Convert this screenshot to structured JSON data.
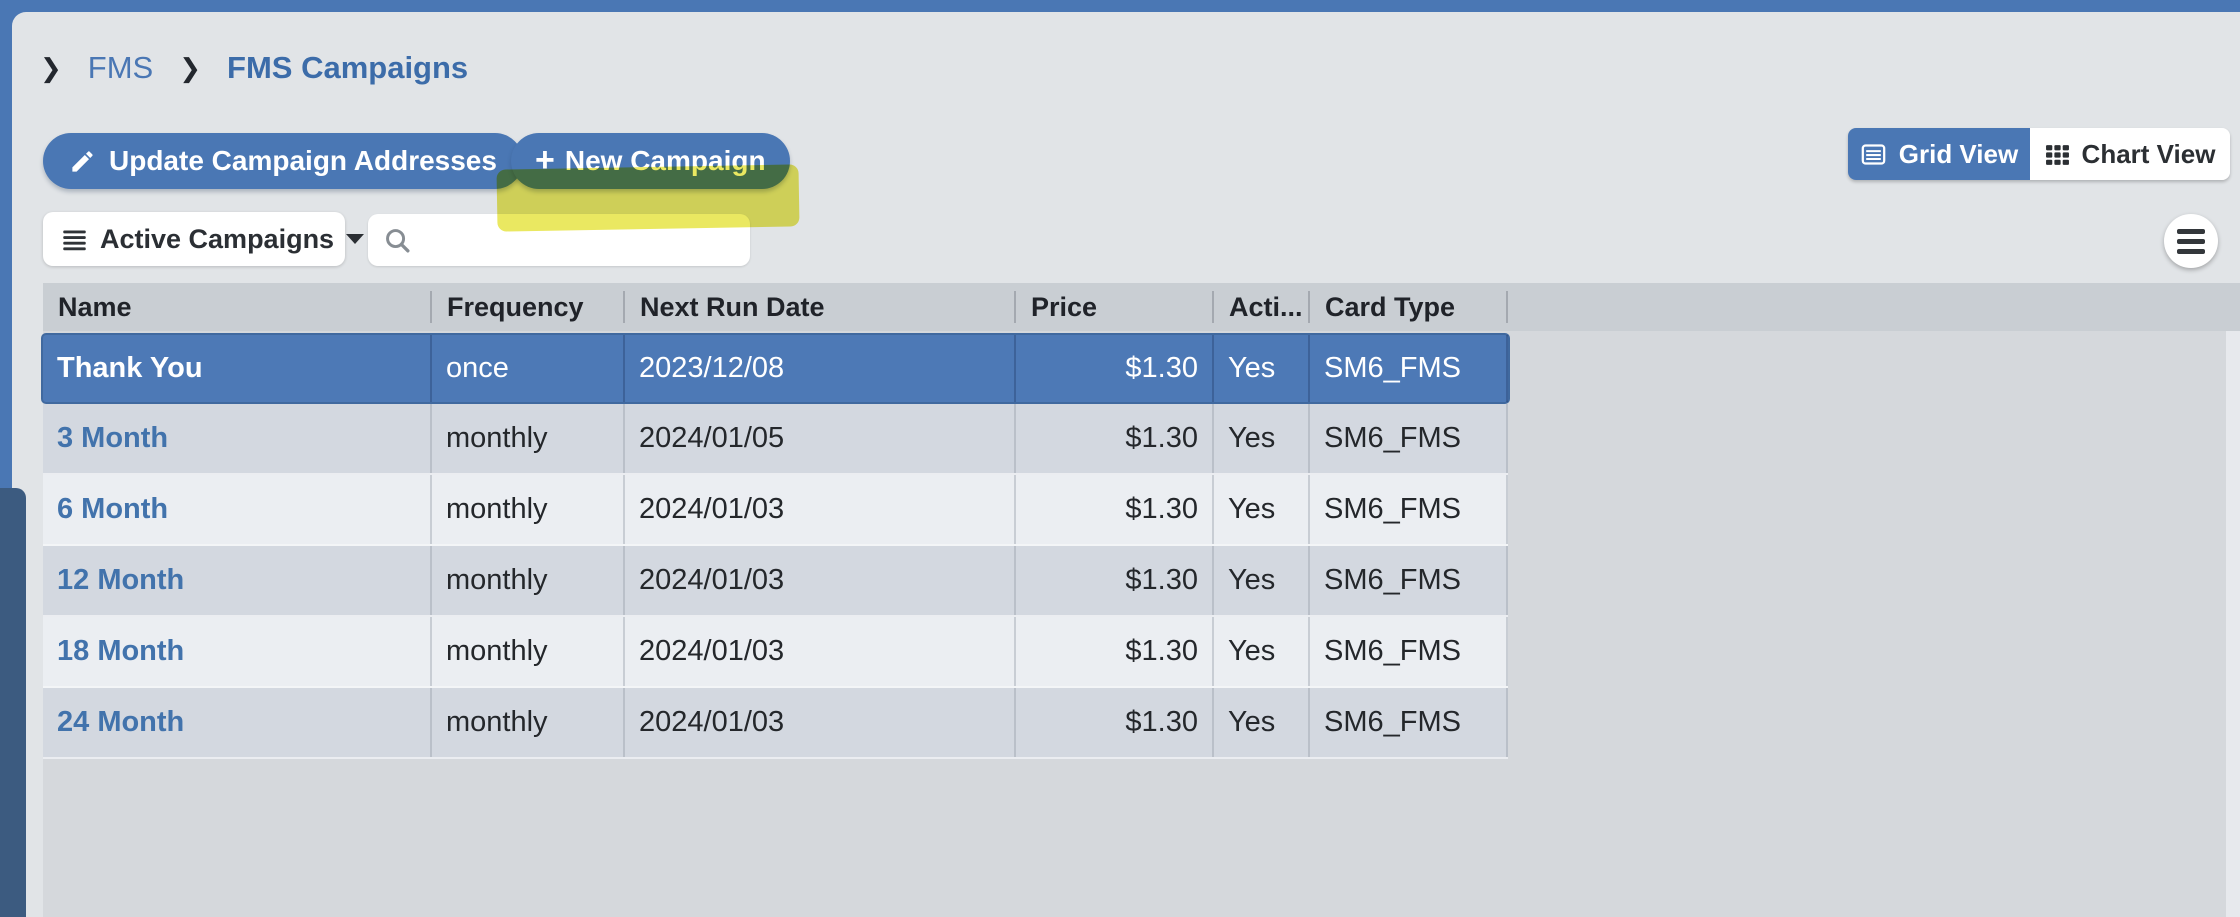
{
  "icons": {
    "chevron": "❯",
    "plus": "+"
  },
  "breadcrumb": {
    "items": [
      {
        "label": "FMS"
      },
      {
        "label": "FMS Campaigns"
      }
    ]
  },
  "toolbar": {
    "update_addresses_label": "Update Campaign Addresses",
    "new_campaign_label": "New Campaign",
    "view_toggle": {
      "grid_label": "Grid View",
      "chart_label": "Chart View",
      "active": "Grid View"
    }
  },
  "filters": {
    "campaign_filter": {
      "value": "Active Campaigns"
    },
    "search": {
      "value": "",
      "placeholder": ""
    }
  },
  "table": {
    "columns": [
      {
        "label": "Name"
      },
      {
        "label": "Frequency"
      },
      {
        "label": "Next Run Date"
      },
      {
        "label": "Price"
      },
      {
        "label": "Acti..."
      },
      {
        "label": "Card Type"
      }
    ],
    "rows": [
      {
        "name": "Thank You",
        "frequency": "once",
        "next_run_date": "2023/12/08",
        "price": "$1.30",
        "active": "Yes",
        "card_type": "SM6_FMS",
        "selected": true
      },
      {
        "name": "3 Month",
        "frequency": "monthly",
        "next_run_date": "2024/01/05",
        "price": "$1.30",
        "active": "Yes",
        "card_type": "SM6_FMS",
        "selected": false
      },
      {
        "name": "6 Month",
        "frequency": "monthly",
        "next_run_date": "2024/01/03",
        "price": "$1.30",
        "active": "Yes",
        "card_type": "SM6_FMS",
        "selected": false
      },
      {
        "name": "12 Month",
        "frequency": "monthly",
        "next_run_date": "2024/01/03",
        "price": "$1.30",
        "active": "Yes",
        "card_type": "SM6_FMS",
        "selected": false
      },
      {
        "name": "18 Month",
        "frequency": "monthly",
        "next_run_date": "2024/01/03",
        "price": "$1.30",
        "active": "Yes",
        "card_type": "SM6_FMS",
        "selected": false
      },
      {
        "name": "24 Month",
        "frequency": "monthly",
        "next_run_date": "2024/01/03",
        "price": "$1.30",
        "active": "Yes",
        "card_type": "SM6_FMS",
        "selected": false
      }
    ],
    "selected_row": "Thank You"
  },
  "colors": {
    "accent_blue": "#4a77b4",
    "selected_row_blue": "#4d79b6",
    "navy_edge": "#3c5b80",
    "highlight_yellow": "#e6e33e",
    "link_blue": "#4273ac",
    "header_gray": "#c9ced3"
  }
}
